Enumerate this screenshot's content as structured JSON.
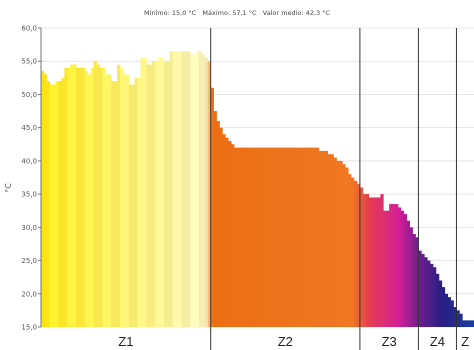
{
  "header": {
    "min_text": "Mínimo: 15,0 °C",
    "max_text": "Máximo: 57,1 °C",
    "avg_text": "Valor medio: 42,3 °C"
  },
  "chart_data": {
    "type": "bar",
    "title": "",
    "xlabel": "",
    "ylabel": "°C",
    "ylim": [
      15,
      60
    ],
    "yticks": [
      "60,0",
      "55,0",
      "50,0",
      "45,0",
      "40,0",
      "35,0",
      "30,0",
      "25,0",
      "20,0",
      "15,0"
    ],
    "grid": true,
    "colors": {
      "axis": "#555555",
      "grid": "#d6d6d6",
      "zone_line": "#333333"
    },
    "zones": [
      {
        "label": "Z1",
        "start": 0,
        "end": 58
      },
      {
        "label": "Z2",
        "start": 58,
        "end": 109
      },
      {
        "label": "Z3",
        "start": 109,
        "end": 129
      },
      {
        "label": "Z4",
        "start": 129,
        "end": 142
      },
      {
        "label": "Z",
        "start": 142,
        "end": 148
      }
    ],
    "values": [
      53.5,
      53.0,
      52.0,
      51.5,
      51.5,
      52.0,
      52.0,
      52.5,
      54.0,
      54.0,
      54.5,
      54.5,
      54.0,
      54.0,
      54.0,
      53.5,
      53.0,
      54.0,
      55.0,
      54.5,
      54.0,
      54.0,
      53.0,
      53.0,
      52.0,
      52.0,
      54.5,
      54.0,
      53.0,
      53.0,
      51.5,
      51.5,
      52.5,
      52.5,
      55.5,
      55.5,
      54.5,
      54.5,
      55.0,
      55.0,
      55.5,
      55.5,
      55.0,
      55.0,
      56.5,
      56.5,
      56.5,
      56.5,
      56.5,
      56.5,
      56.5,
      56.0,
      56.0,
      56.5,
      56.5,
      56.0,
      55.5,
      55.0,
      51.0,
      47.5,
      46.0,
      45.0,
      44.0,
      43.5,
      43.0,
      42.5,
      42.0,
      42.0,
      42.0,
      42.0,
      42.0,
      42.0,
      42.0,
      42.0,
      42.0,
      42.0,
      42.0,
      42.0,
      42.0,
      42.0,
      42.0,
      42.0,
      42.0,
      42.0,
      42.0,
      42.0,
      42.0,
      42.0,
      42.0,
      42.0,
      42.0,
      42.0,
      42.0,
      42.0,
      42.0,
      41.5,
      41.5,
      41.5,
      41.0,
      41.0,
      40.5,
      40.0,
      40.0,
      39.5,
      39.0,
      38.0,
      37.5,
      37.0,
      36.5,
      36.0,
      35.0,
      35.0,
      34.5,
      34.5,
      34.5,
      34.5,
      35.0,
      32.5,
      32.5,
      33.5,
      33.5,
      33.5,
      33.0,
      32.5,
      32.0,
      31.0,
      30.0,
      29.0,
      28.5,
      26.5,
      26.0,
      25.5,
      25.0,
      24.5,
      24.0,
      23.0,
      22.0,
      21.0,
      20.0,
      19.5,
      19.0,
      18.0,
      17.5,
      17.0,
      16.0,
      16.0,
      16.0,
      16.0
    ]
  }
}
